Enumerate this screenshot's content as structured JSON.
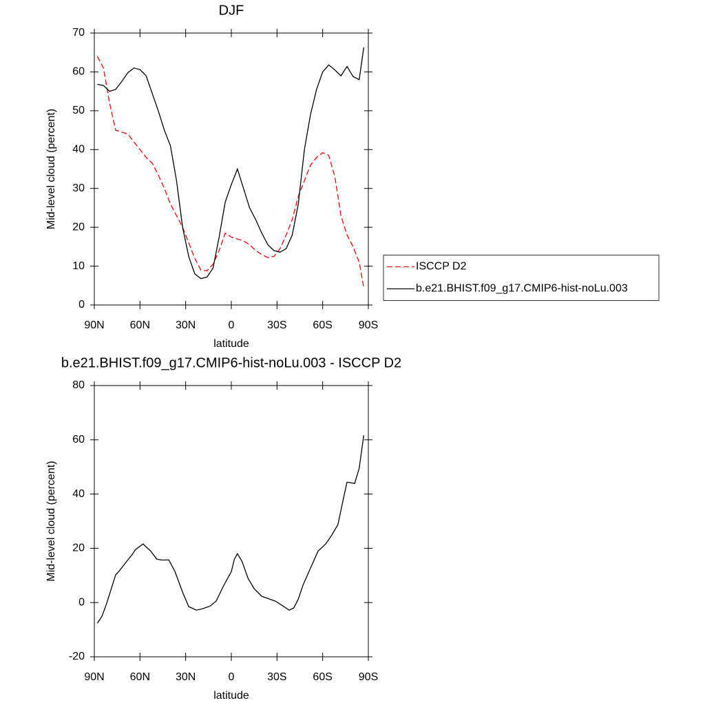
{
  "chart_data": [
    {
      "type": "line",
      "title": "DJF",
      "x_label": "latitude",
      "y_label": "Mid-level cloud (percent)",
      "x": [
        88,
        84,
        80,
        76,
        72,
        68,
        64,
        60,
        56,
        52,
        48,
        44,
        40,
        36,
        32,
        28,
        24,
        20,
        16,
        12,
        8,
        4,
        0,
        -4,
        -8,
        -12,
        -16,
        -20,
        -24,
        -28,
        -32,
        -36,
        -40,
        -44,
        -48,
        -52,
        -56,
        -60,
        -64,
        -68,
        -72,
        -76,
        -80,
        -84,
        -87
      ],
      "series": [
        {
          "name": "ISCCP D2",
          "color": "#ff0000",
          "line_style": "dashed",
          "values": [
            64,
            61,
            52,
            45,
            44.5,
            44,
            42,
            40,
            38,
            36.5,
            33.5,
            30,
            26,
            23,
            20,
            16,
            12,
            9,
            8.8,
            10.5,
            14,
            18.5,
            17.5,
            17,
            16.5,
            15.5,
            14,
            13,
            12.2,
            12.5,
            14.5,
            18,
            22,
            28,
            32,
            36,
            38,
            39.2,
            38.5,
            33,
            23,
            18,
            15,
            11,
            4.5
          ]
        },
        {
          "name": "b.e21.BHIST.f09_g17.CMIP6-hist-noLu.003",
          "color": "#000000",
          "line_style": "solid",
          "values": [
            56.8,
            56.5,
            55,
            55.5,
            57.5,
            59.8,
            61,
            60.6,
            59,
            54.5,
            50,
            45,
            41,
            32,
            20,
            12.5,
            8,
            6.8,
            7.2,
            9.5,
            17.5,
            26.5,
            31,
            35,
            30,
            25,
            22,
            18.5,
            15.5,
            14,
            13.6,
            14.5,
            18,
            26,
            40,
            49,
            55.5,
            60,
            61.8,
            60.5,
            59,
            61.4,
            58.8,
            58,
            66.3
          ]
        }
      ],
      "xlim": [
        90,
        -90
      ],
      "xticks": [
        {
          "value": 90,
          "label": "90N"
        },
        {
          "value": 60,
          "label": "60N"
        },
        {
          "value": 30,
          "label": "30N"
        },
        0,
        {
          "value": -30,
          "label": "30S"
        },
        {
          "value": -60,
          "label": "60S"
        },
        {
          "value": -90,
          "label": "90S"
        }
      ],
      "ylim": [
        0,
        70
      ],
      "yticks": [
        0,
        10,
        20,
        30,
        40,
        50,
        60,
        70
      ],
      "legend": "right"
    },
    {
      "type": "line",
      "title": "b.e21.BHIST.f09_g17.CMIP6-hist-noLu.003 - ISCCP D2",
      "x_label": "latitude",
      "y_label": "Mid-level cloud (percent)",
      "x": [
        88,
        85,
        82,
        76,
        74,
        68,
        65,
        63,
        58,
        53,
        49,
        46,
        41,
        37,
        32,
        28,
        23,
        19,
        14,
        10,
        5,
        0,
        -2,
        -4,
        -7,
        -11,
        -15,
        -20,
        -24,
        -29,
        -34,
        -38,
        -41,
        -44,
        -47,
        -52,
        -57,
        -62,
        -66,
        -70,
        -74,
        -76,
        -81,
        -84,
        -87
      ],
      "series": [
        {
          "color": "#000000",
          "line_style": "solid",
          "values": [
            -7.6,
            -5.1,
            -0.5,
            10.2,
            11.4,
            15.7,
            17.8,
            19.5,
            21.6,
            19,
            16,
            15.7,
            15.7,
            11.4,
            3.8,
            -1.5,
            -2.8,
            -2.3,
            -1.3,
            0.5,
            6.3,
            11.4,
            16,
            18,
            15.2,
            8.9,
            5.1,
            2.3,
            1.5,
            0.5,
            -1.3,
            -2.8,
            -2,
            1.3,
            6.3,
            12.7,
            19,
            21.6,
            24.9,
            28.7,
            39.3,
            44.4,
            43.9,
            49.5,
            61.7
          ]
        }
      ],
      "xlim": [
        90,
        -90
      ],
      "xticks": [
        {
          "value": 90,
          "label": "90N"
        },
        {
          "value": 60,
          "label": "60N"
        },
        {
          "value": 30,
          "label": "30N"
        },
        0,
        {
          "value": -30,
          "label": "30S"
        },
        {
          "value": -60,
          "label": "60S"
        },
        {
          "value": -90,
          "label": "90S"
        }
      ],
      "ylim": [
        -20,
        80
      ],
      "yticks": [
        -20,
        0,
        20,
        40,
        60,
        80
      ]
    }
  ]
}
